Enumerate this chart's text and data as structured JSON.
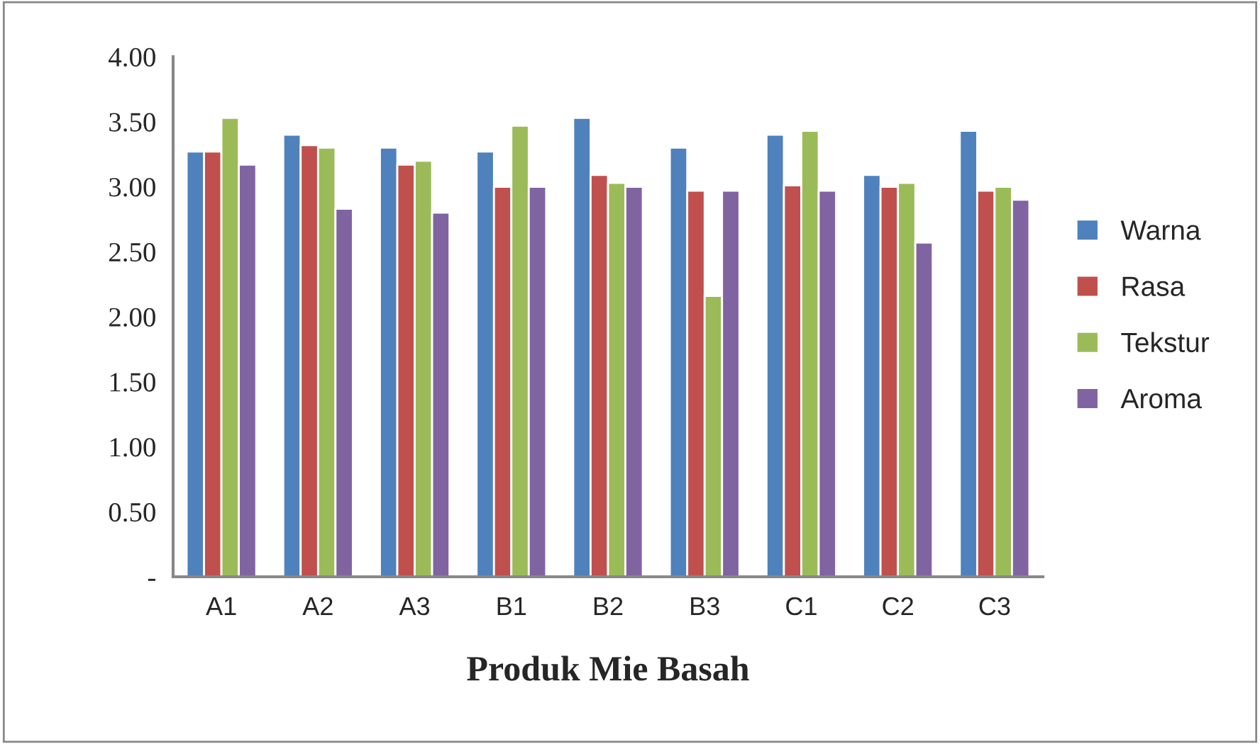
{
  "chart_data": {
    "type": "bar",
    "xlabel": "Produk Mie Basah",
    "categories": [
      "A1",
      "A2",
      "A3",
      "B1",
      "B2",
      "B3",
      "C1",
      "C2",
      "C3"
    ],
    "series": [
      {
        "name": "Warna",
        "color": "#4f81bd",
        "values": [
          3.27,
          3.4,
          3.3,
          3.27,
          3.53,
          3.3,
          3.4,
          3.09,
          3.43
        ]
      },
      {
        "name": "Rasa",
        "color": "#c0504d",
        "values": [
          3.27,
          3.32,
          3.17,
          3.0,
          3.09,
          2.97,
          3.01,
          3.0,
          2.97
        ]
      },
      {
        "name": "Tekstur",
        "color": "#9bbb59",
        "values": [
          3.53,
          3.3,
          3.2,
          3.47,
          3.03,
          2.16,
          3.43,
          3.03,
          3.0
        ]
      },
      {
        "name": "Aroma",
        "color": "#8064a2",
        "values": [
          3.17,
          2.83,
          2.8,
          3.0,
          3.0,
          2.97,
          2.97,
          2.57,
          2.9
        ]
      }
    ],
    "ylim": [
      0,
      4
    ],
    "yticks": [
      {
        "value": 0,
        "label": "-"
      },
      {
        "value": 0.5,
        "label": "0.50"
      },
      {
        "value": 1,
        "label": "1.00"
      },
      {
        "value": 1.5,
        "label": "1.50"
      },
      {
        "value": 2,
        "label": "2.00"
      },
      {
        "value": 2.5,
        "label": "2.50"
      },
      {
        "value": 3,
        "label": "3.00"
      },
      {
        "value": 3.5,
        "label": "3.50"
      },
      {
        "value": 4,
        "label": "4.00"
      }
    ],
    "grid": false,
    "legend": "right"
  }
}
